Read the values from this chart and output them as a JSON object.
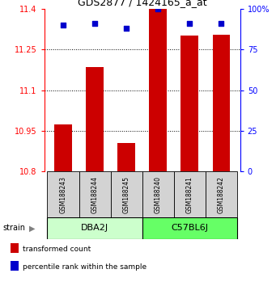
{
  "title": "GDS2877 / 1424165_a_at",
  "samples": [
    "GSM188243",
    "GSM188244",
    "GSM188245",
    "GSM188240",
    "GSM188241",
    "GSM188242"
  ],
  "bar_values": [
    10.975,
    11.185,
    10.905,
    11.405,
    11.3,
    11.305
  ],
  "percentile_values": [
    90,
    91,
    88,
    100,
    91,
    91
  ],
  "bar_color": "#cc0000",
  "dot_color": "#0000cc",
  "ylim_left": [
    10.8,
    11.4
  ],
  "ylim_right": [
    0,
    100
  ],
  "yticks_left": [
    10.8,
    10.95,
    11.1,
    11.25,
    11.4
  ],
  "ytick_labels_left": [
    "10.8",
    "10.95",
    "11.1",
    "11.25",
    "11.4"
  ],
  "yticks_right": [
    0,
    25,
    50,
    75,
    100
  ],
  "ytick_labels_right": [
    "0",
    "25",
    "50",
    "75",
    "100%"
  ],
  "groups": [
    {
      "label": "DBA2J",
      "indices": [
        0,
        1,
        2
      ],
      "color": "#ccffcc"
    },
    {
      "label": "C57BL6J",
      "indices": [
        3,
        4,
        5
      ],
      "color": "#66ff66"
    }
  ],
  "strain_label": "strain",
  "legend_items": [
    {
      "color": "#cc0000",
      "label": "transformed count"
    },
    {
      "color": "#0000cc",
      "label": "percentile rank within the sample"
    }
  ],
  "bar_bottom": 10.8,
  "bar_width": 0.55,
  "background_color": "#ffffff",
  "sample_box_color": "#d3d3d3",
  "figsize": [
    3.41,
    3.54
  ],
  "dpi": 100
}
